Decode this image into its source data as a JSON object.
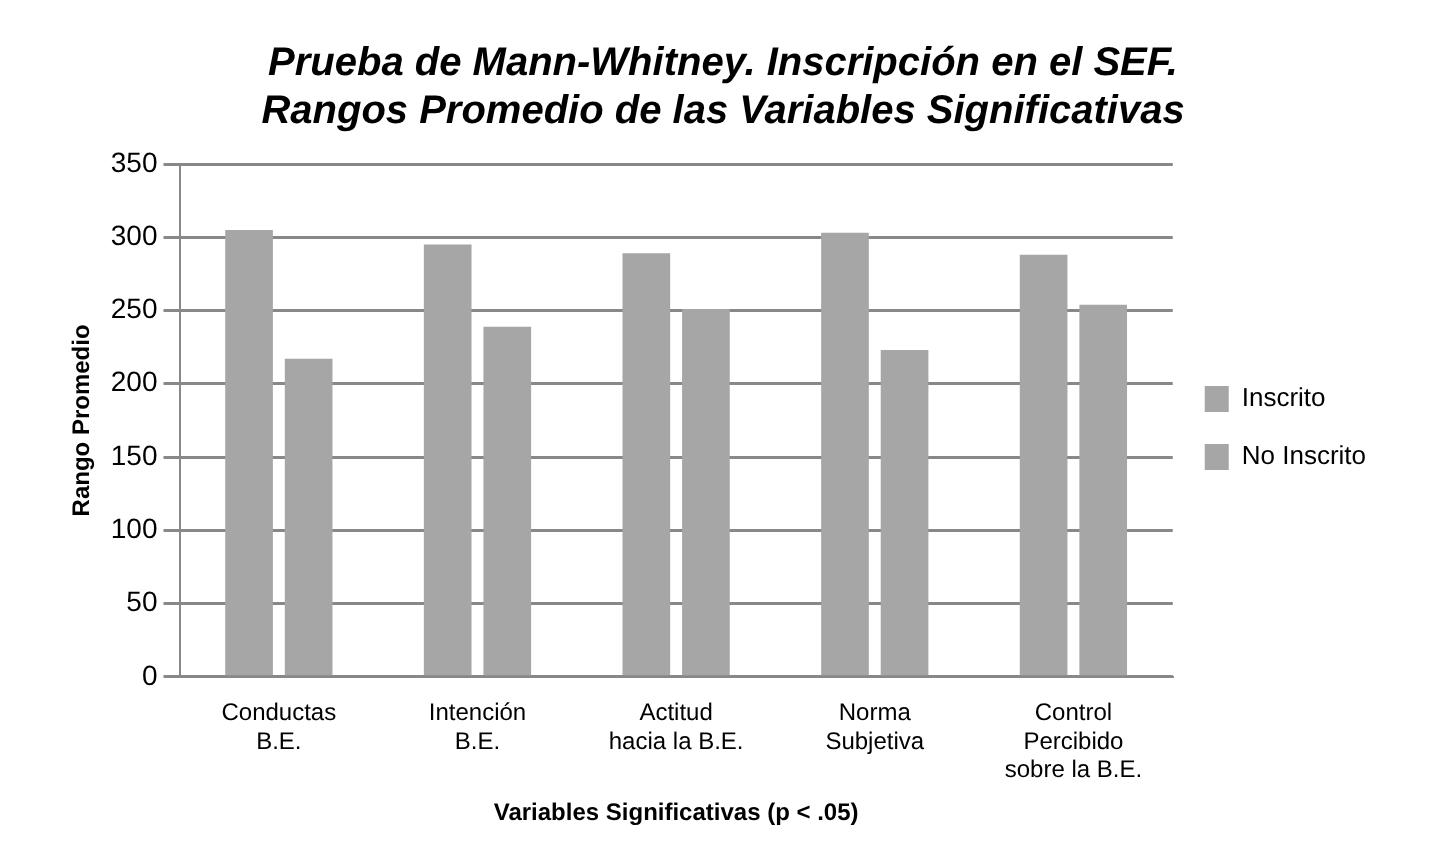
{
  "chart_data": {
    "type": "bar",
    "title": "Prueba de Mann-Whitney. Inscripción en el SEF.\nRangos Promedio de las Variables Significativas",
    "xlabel": "Variables Significativas (p < .05)",
    "ylabel": "Rango Promedio",
    "categories": [
      "Conductas\nB.E.",
      "Intención\nB.E.",
      "Actitud\nhacia la B.E.",
      "Norma\nSubjetiva",
      "Control\nPercibido\nsobre la B.E."
    ],
    "series": [
      {
        "name": "Inscrito",
        "color": "#a6a6a6",
        "values": [
          305,
          295,
          289,
          303,
          288
        ]
      },
      {
        "name": "No Inscrito",
        "color": "#a6a6a6",
        "values": [
          217,
          239,
          251,
          223,
          254
        ]
      }
    ],
    "ylim": [
      0,
      350
    ],
    "yticks": [
      0,
      50,
      100,
      150,
      200,
      250,
      300,
      350
    ],
    "grid": "y",
    "legend": "right"
  }
}
